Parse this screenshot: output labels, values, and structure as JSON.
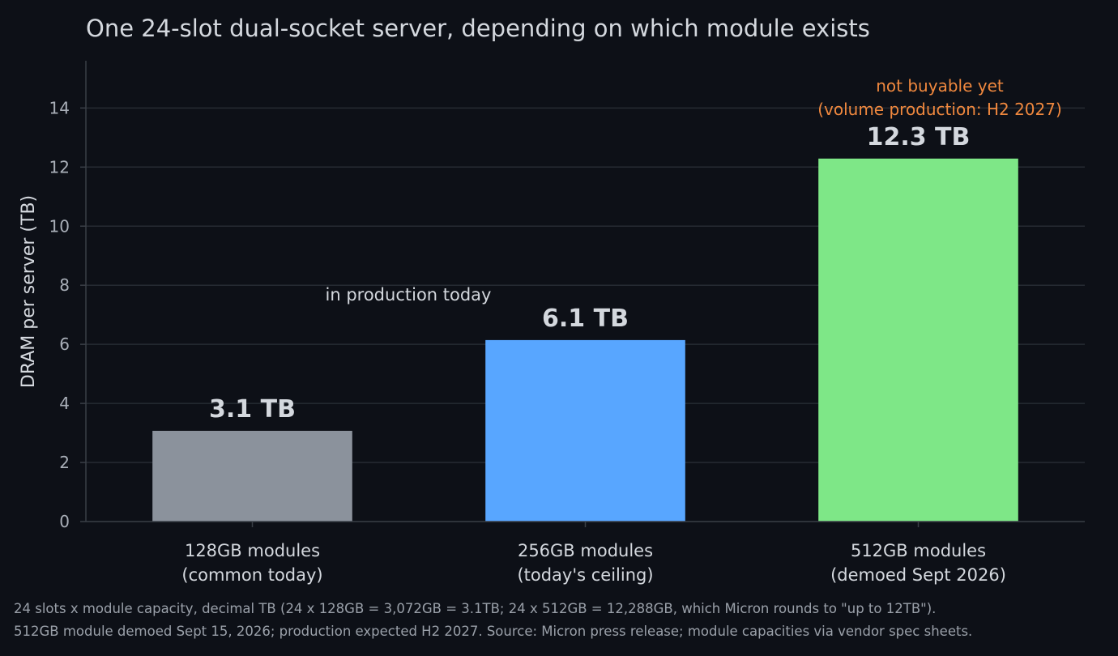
{
  "chart_data": {
    "type": "bar",
    "title": "One 24-slot dual-socket server, depending on which module exists",
    "ylabel": "DRAM per server (TB)",
    "xlabel": "",
    "ylim": [
      0,
      15.6
    ],
    "yticks": [
      0,
      2,
      4,
      6,
      8,
      10,
      12,
      14
    ],
    "grid": true,
    "categories": [
      [
        "128GB modules",
        "(common today)"
      ],
      [
        "256GB modules",
        "(today's ceiling)"
      ],
      [
        "512GB modules",
        "(demoed Sept 2026)"
      ]
    ],
    "values": [
      3.072,
      6.144,
      12.288
    ],
    "data_labels": [
      "3.1 TB",
      "6.1 TB",
      "12.3 TB"
    ],
    "colors": [
      "#8b929c",
      "#58a6ff",
      "#7ee787"
    ],
    "annotations": {
      "production_note": "in production today",
      "future_note": [
        "not buyable yet",
        "(volume production: H2 2027)"
      ]
    }
  },
  "footer": {
    "line1": "24 slots x module capacity, decimal TB (24 x 128GB = 3,072GB = 3.1TB; 24 x 512GB = 12,288GB, which Micron rounds to \"up to 12TB\").",
    "line2": "512GB module demoed Sept 15, 2026; production expected H2 2027.  Source: Micron press release; module capacities via vendor spec sheets."
  },
  "colors": {
    "background": "#0d1017",
    "grid": "#262b33",
    "axis": "#3a3f47",
    "warn": "#f0883e"
  }
}
